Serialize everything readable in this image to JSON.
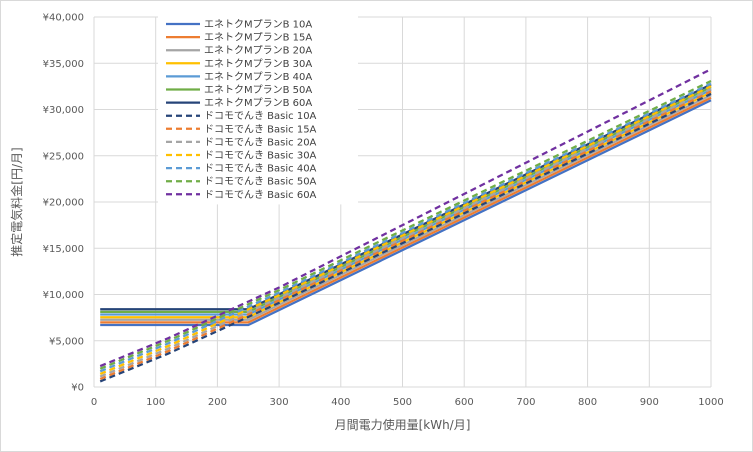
{
  "chart_data": {
    "type": "line",
    "title": "",
    "xlabel": "月間電力使用量[kWh/月]",
    "ylabel": "推定電気料金[円/月]",
    "xlim": [
      0,
      1000
    ],
    "ylim": [
      0,
      40000
    ],
    "x_ticks": [
      0,
      100,
      200,
      300,
      400,
      500,
      600,
      700,
      800,
      900,
      1000
    ],
    "y_ticks": [
      0,
      5000,
      10000,
      15000,
      20000,
      25000,
      30000,
      35000,
      40000
    ],
    "x_tick_labels": [
      "0",
      "100",
      "200",
      "300",
      "400",
      "500",
      "600",
      "700",
      "800",
      "900",
      "1000"
    ],
    "y_tick_labels": [
      "¥0",
      "¥5,000",
      "¥10,000",
      "¥15,000",
      "¥20,000",
      "¥25,000",
      "¥30,000",
      "¥35,000",
      "¥40,000"
    ],
    "grid": true,
    "legend_position": "top-left",
    "series": [
      {
        "name": "エネトクMプランB 10A",
        "color": "#4472c4",
        "style": "solid",
        "x": [
          10,
          250,
          1000
        ],
        "y": [
          6700,
          6700,
          31000
        ]
      },
      {
        "name": "エネトクMプランB 15A",
        "color": "#ed7d31",
        "style": "solid",
        "x": [
          10,
          250,
          1000
        ],
        "y": [
          6980,
          6980,
          31280
        ]
      },
      {
        "name": "エネトクMプランB 20A",
        "color": "#a5a5a5",
        "style": "solid",
        "x": [
          10,
          250,
          1000
        ],
        "y": [
          7260,
          7260,
          31560
        ]
      },
      {
        "name": "エネトクMプランB 30A",
        "color": "#ffc000",
        "style": "solid",
        "x": [
          10,
          250,
          1000
        ],
        "y": [
          7550,
          7550,
          31850
        ]
      },
      {
        "name": "エネトクMプランB 40A",
        "color": "#5b9bd5",
        "style": "solid",
        "x": [
          10,
          250,
          1000
        ],
        "y": [
          7840,
          7840,
          32140
        ]
      },
      {
        "name": "エネトクMプランB 50A",
        "color": "#70ad47",
        "style": "solid",
        "x": [
          10,
          250,
          1000
        ],
        "y": [
          8120,
          8120,
          32420
        ]
      },
      {
        "name": "エネトクMプランB 60A",
        "color": "#264478",
        "style": "solid",
        "x": [
          10,
          250,
          1000
        ],
        "y": [
          8400,
          8400,
          32700
        ]
      },
      {
        "name": "ドコモでんき Basic 10A",
        "color": "#264478",
        "style": "dashed",
        "x": [
          10,
          120,
          300,
          1000
        ],
        "y": [
          600,
          3600,
          9100,
          31700
        ]
      },
      {
        "name": "ドコモでんき Basic 15A",
        "color": "#ed7d31",
        "style": "dashed",
        "x": [
          10,
          120,
          300,
          1000
        ],
        "y": [
          870,
          3870,
          9370,
          31970
        ]
      },
      {
        "name": "ドコモでんき Basic 20A",
        "color": "#a5a5a5",
        "style": "dashed",
        "x": [
          10,
          120,
          300,
          1000
        ],
        "y": [
          1140,
          4140,
          9640,
          32240
        ]
      },
      {
        "name": "ドコモでんき Basic 30A",
        "color": "#ffc000",
        "style": "dashed",
        "x": [
          10,
          120,
          300,
          1000
        ],
        "y": [
          1420,
          4420,
          9920,
          32520
        ]
      },
      {
        "name": "ドコモでんき Basic 40A",
        "color": "#5b9bd5",
        "style": "dashed",
        "x": [
          10,
          120,
          300,
          1000
        ],
        "y": [
          1700,
          4700,
          10200,
          32800
        ]
      },
      {
        "name": "ドコモでんき Basic 50A",
        "color": "#70ad47",
        "style": "dashed",
        "x": [
          10,
          120,
          300,
          1000
        ],
        "y": [
          1980,
          4980,
          10480,
          33080
        ]
      },
      {
        "name": "ドコモでんき Basic 60A",
        "color": "#7030a0",
        "style": "dashed",
        "x": [
          10,
          120,
          300,
          1000
        ],
        "y": [
          2260,
          5260,
          10760,
          34360
        ]
      }
    ]
  }
}
